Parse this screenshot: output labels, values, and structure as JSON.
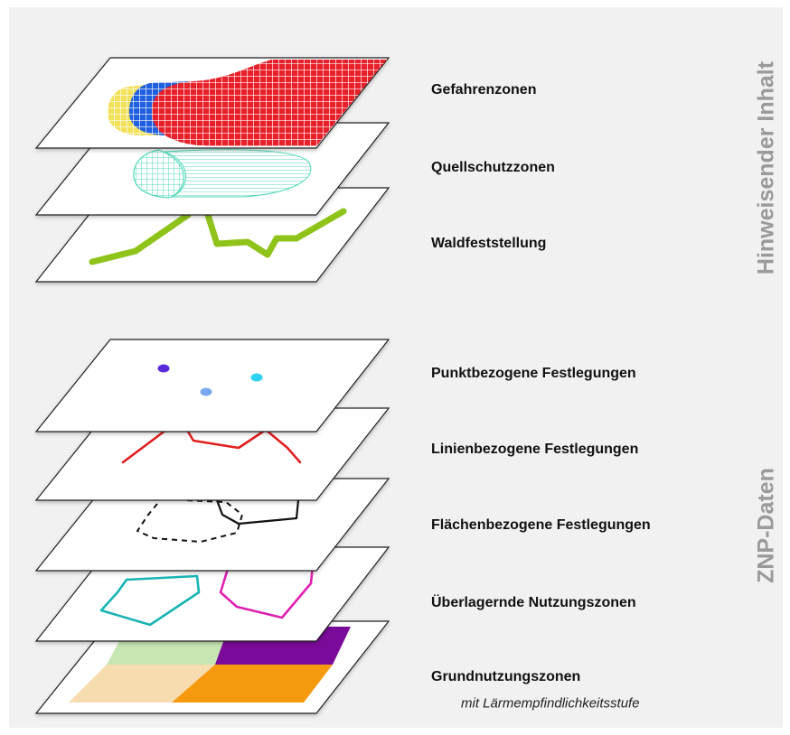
{
  "groups": {
    "top": "Hinweisender Inhalt",
    "bottom": "ZNP-Daten"
  },
  "layers": [
    {
      "label": "Gefahrenzonen"
    },
    {
      "label": "Quellschutzzonen"
    },
    {
      "label": "Waldfeststellung"
    },
    {
      "label": "Punktbezogene Festlegungen"
    },
    {
      "label": "Linienbezogene Festlegungen"
    },
    {
      "label": "Flächenbezogene Festlegungen"
    },
    {
      "label": "Überlagernde Nutzungszonen"
    },
    {
      "label": "Grundnutzungszonen",
      "sublabel": "mit Lärmempfindlichkeitsstufe"
    }
  ],
  "colors": {
    "danger_red": "#e8202a",
    "danger_blue": "#1f5fe0",
    "danger_yellow": "#f2e15a",
    "spring_teal": "#4fd8b8",
    "forest_green": "#8fc31a",
    "point_purple": "#5a2bd6",
    "point_blue": "#7aa8f0",
    "point_cyan": "#2bd3f0",
    "line_red": "#e02020",
    "zone_teal": "#18b4b4",
    "zone_magenta": "#e020b0",
    "base_lightgreen": "#c8e6b4",
    "base_purple": "#7a0a9a",
    "base_beige": "#f6dcae",
    "base_orange": "#f59a0f"
  }
}
